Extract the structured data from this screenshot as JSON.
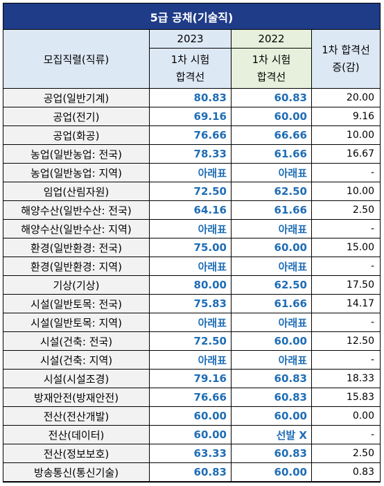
{
  "title": "5급 공채(기술직)",
  "header": {
    "col_name": "모집직렬(직류)",
    "year_2023": "2023",
    "year_2022": "2022",
    "sub_line1": "1차 시험",
    "sub_line2": "합격선",
    "diff_line1": "1차 합격선",
    "diff_line2": "증(감)"
  },
  "colors": {
    "title_bg": "#1f3c88",
    "header_bg": "#dde8f5",
    "header_2022_bg": "#e6f0dc",
    "value_text": "#1f6db5"
  },
  "rows": [
    {
      "name": "공업(일반기계)",
      "v2023": "80.83",
      "v2022": "60.83",
      "diff": "20.00"
    },
    {
      "name": "공업(전기)",
      "v2023": "69.16",
      "v2022": "60.00",
      "diff": "9.16"
    },
    {
      "name": "공업(화공)",
      "v2023": "76.66",
      "v2022": "66.66",
      "diff": "10.00"
    },
    {
      "name": "농업(일반농업: 전국)",
      "v2023": "78.33",
      "v2022": "61.66",
      "diff": "16.67"
    },
    {
      "name": "농업(일반농업: 지역)",
      "v2023": "아래표",
      "v2022": "아래표",
      "diff": "-"
    },
    {
      "name": "임업(산림자원)",
      "v2023": "72.50",
      "v2022": "62.50",
      "diff": "10.00"
    },
    {
      "name": "해양수산(일반수산: 전국)",
      "v2023": "64.16",
      "v2022": "61.66",
      "diff": "2.50"
    },
    {
      "name": "해양수산(일반수산: 지역)",
      "v2023": "아래표",
      "v2022": "아래표",
      "diff": "-"
    },
    {
      "name": "환경(일반환경: 전국)",
      "v2023": "75.00",
      "v2022": "60.00",
      "diff": "15.00"
    },
    {
      "name": "환경(일반환경: 지역)",
      "v2023": "아래표",
      "v2022": "아래표",
      "diff": "-"
    },
    {
      "name": "기상(기상)",
      "v2023": "80.00",
      "v2022": "62.50",
      "diff": "17.50"
    },
    {
      "name": "시설(일반토목: 전국)",
      "v2023": "75.83",
      "v2022": "61.66",
      "diff": "14.17"
    },
    {
      "name": "시설(일반토목: 지역)",
      "v2023": "아래표",
      "v2022": "아래표",
      "diff": "-"
    },
    {
      "name": "시설(건축: 전국)",
      "v2023": "72.50",
      "v2022": "60.00",
      "diff": "12.50"
    },
    {
      "name": "시설(건축: 지역)",
      "v2023": "아래표",
      "v2022": "아래표",
      "diff": "-"
    },
    {
      "name": "시설(시설조경)",
      "v2023": "79.16",
      "v2022": "60.83",
      "diff": "18.33"
    },
    {
      "name": "방재안전(방재안전)",
      "v2023": "76.66",
      "v2022": "60.83",
      "diff": "15.83"
    },
    {
      "name": "전산(전산개발)",
      "v2023": "60.00",
      "v2022": "60.00",
      "diff": "0.00"
    },
    {
      "name": "전산(데이터)",
      "v2023": "60.00",
      "v2022": "선발 X",
      "diff": "-"
    },
    {
      "name": "전산(정보보호)",
      "v2023": "63.33",
      "v2022": "60.83",
      "diff": "2.50"
    },
    {
      "name": "방송통신(통신기술)",
      "v2023": "60.83",
      "v2022": "60.00",
      "diff": "0.83"
    }
  ]
}
